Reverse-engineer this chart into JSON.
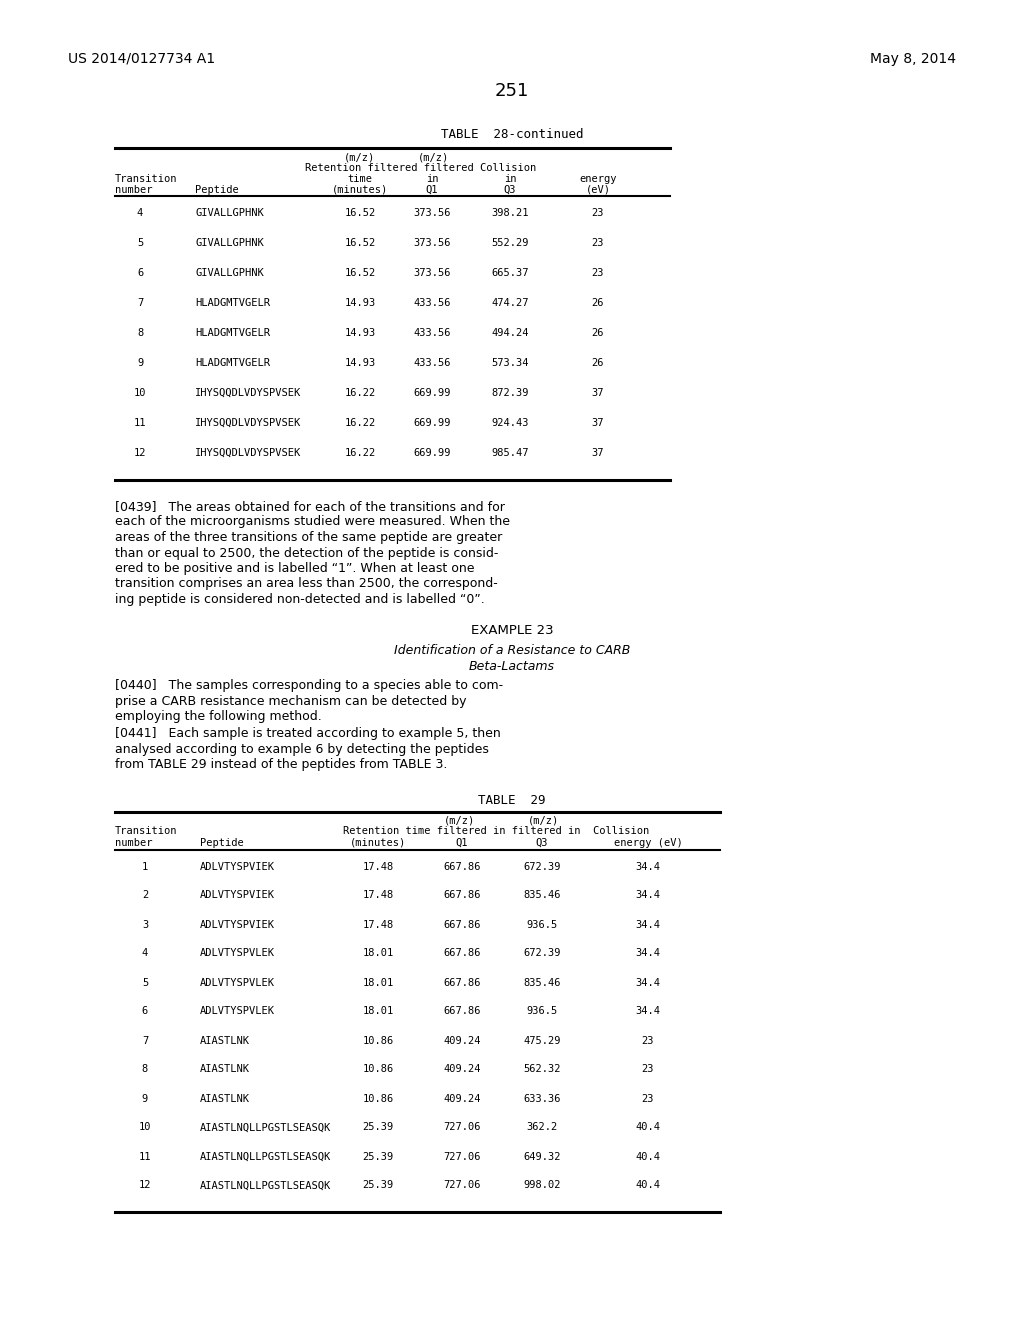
{
  "header_left": "US 2014/0127734 A1",
  "header_right": "May 8, 2014",
  "page_number": "251",
  "table28_title": "TABLE  28-continued",
  "table28_data": [
    [
      "4",
      "GIVALLGPHNK",
      "16.52",
      "373.56",
      "398.21",
      "23"
    ],
    [
      "5",
      "GIVALLGPHNK",
      "16.52",
      "373.56",
      "552.29",
      "23"
    ],
    [
      "6",
      "GIVALLGPHNK",
      "16.52",
      "373.56",
      "665.37",
      "23"
    ],
    [
      "7",
      "HLADGMTVGELR",
      "14.93",
      "433.56",
      "474.27",
      "26"
    ],
    [
      "8",
      "HLADGMTVGELR",
      "14.93",
      "433.56",
      "494.24",
      "26"
    ],
    [
      "9",
      "HLADGMTVGELR",
      "14.93",
      "433.56",
      "573.34",
      "26"
    ],
    [
      "10",
      "IHYSQQDLVDYSPVSEK",
      "16.22",
      "669.99",
      "872.39",
      "37"
    ],
    [
      "11",
      "IHYSQQDLVDYSPVSEK",
      "16.22",
      "669.99",
      "924.43",
      "37"
    ],
    [
      "12",
      "IHYSQQDLVDYSPVSEK",
      "16.22",
      "669.99",
      "985.47",
      "37"
    ]
  ],
  "lines_0439": [
    "[0439]   The areas obtained for each of the transitions and for",
    "each of the microorganisms studied were measured. When the",
    "areas of the three transitions of the same peptide are greater",
    "than or equal to 2500, the detection of the peptide is consid-",
    "ered to be positive and is labelled “1”. When at least one",
    "transition comprises an area less than 2500, the correspond-",
    "ing peptide is considered non-detected and is labelled “0”."
  ],
  "example23_title": "EXAMPLE 23",
  "example23_subtitle1": "Identification of a Resistance to CARB",
  "example23_subtitle2": "Beta-Lactams",
  "lines_0440": [
    "[0440]   The samples corresponding to a species able to com-",
    "prise a CARB resistance mechanism can be detected by",
    "employing the following method."
  ],
  "lines_0441": [
    "[0441]   Each sample is treated according to example 5, then",
    "analysed according to example 6 by detecting the peptides",
    "from TABLE 29 instead of the peptides from TABLE 3."
  ],
  "table29_title": "TABLE  29",
  "table29_data": [
    [
      "1",
      "ADLVTYSPVIEK",
      "17.48",
      "667.86",
      "672.39",
      "34.4"
    ],
    [
      "2",
      "ADLVTYSPVIEK",
      "17.48",
      "667.86",
      "835.46",
      "34.4"
    ],
    [
      "3",
      "ADLVTYSPVIEK",
      "17.48",
      "667.86",
      "936.5",
      "34.4"
    ],
    [
      "4",
      "ADLVTYSPVLEK",
      "18.01",
      "667.86",
      "672.39",
      "34.4"
    ],
    [
      "5",
      "ADLVTYSPVLEK",
      "18.01",
      "667.86",
      "835.46",
      "34.4"
    ],
    [
      "6",
      "ADLVTYSPVLEK",
      "18.01",
      "667.86",
      "936.5",
      "34.4"
    ],
    [
      "7",
      "AIASTLNK",
      "10.86",
      "409.24",
      "475.29",
      "23"
    ],
    [
      "8",
      "AIASTLNK",
      "10.86",
      "409.24",
      "562.32",
      "23"
    ],
    [
      "9",
      "AIASTLNK",
      "10.86",
      "409.24",
      "633.36",
      "23"
    ],
    [
      "10",
      "AIASTLNQLLPGSTLSEASQK",
      "25.39",
      "727.06",
      "362.2",
      "40.4"
    ],
    [
      "11",
      "AIASTLNQLLPGSTLSEASQK",
      "25.39",
      "727.06",
      "649.32",
      "40.4"
    ],
    [
      "12",
      "AIASTLNQLLPGSTLSEASQK",
      "25.39",
      "727.06",
      "998.02",
      "40.4"
    ]
  ],
  "bg_color": "#ffffff"
}
